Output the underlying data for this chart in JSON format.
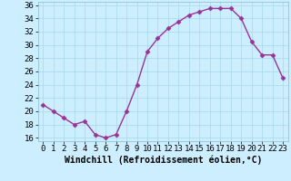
{
  "x": [
    0,
    1,
    2,
    3,
    4,
    5,
    6,
    7,
    8,
    9,
    10,
    11,
    12,
    13,
    14,
    15,
    16,
    17,
    18,
    19,
    20,
    21,
    22,
    23
  ],
  "y": [
    21,
    20,
    19,
    18,
    18.5,
    16.5,
    16,
    16.5,
    20,
    24,
    29,
    31,
    32.5,
    33.5,
    34.5,
    35,
    35.5,
    35.5,
    35.5,
    34,
    30.5,
    28.5,
    28.5,
    25
  ],
  "line_color": "#993399",
  "marker": "D",
  "marker_size": 2.5,
  "xlabel": "Windchill (Refroidissement éolien,°C)",
  "xlim": [
    -0.5,
    23.5
  ],
  "ylim": [
    15.5,
    36.5
  ],
  "yticks": [
    16,
    18,
    20,
    22,
    24,
    26,
    28,
    30,
    32,
    34,
    36
  ],
  "xticks": [
    0,
    1,
    2,
    3,
    4,
    5,
    6,
    7,
    8,
    9,
    10,
    11,
    12,
    13,
    14,
    15,
    16,
    17,
    18,
    19,
    20,
    21,
    22,
    23
  ],
  "bg_color": "#cceeff",
  "grid_color": "#aaddee",
  "xlabel_fontsize": 7,
  "tick_fontsize": 6.5,
  "line_width": 1.0
}
